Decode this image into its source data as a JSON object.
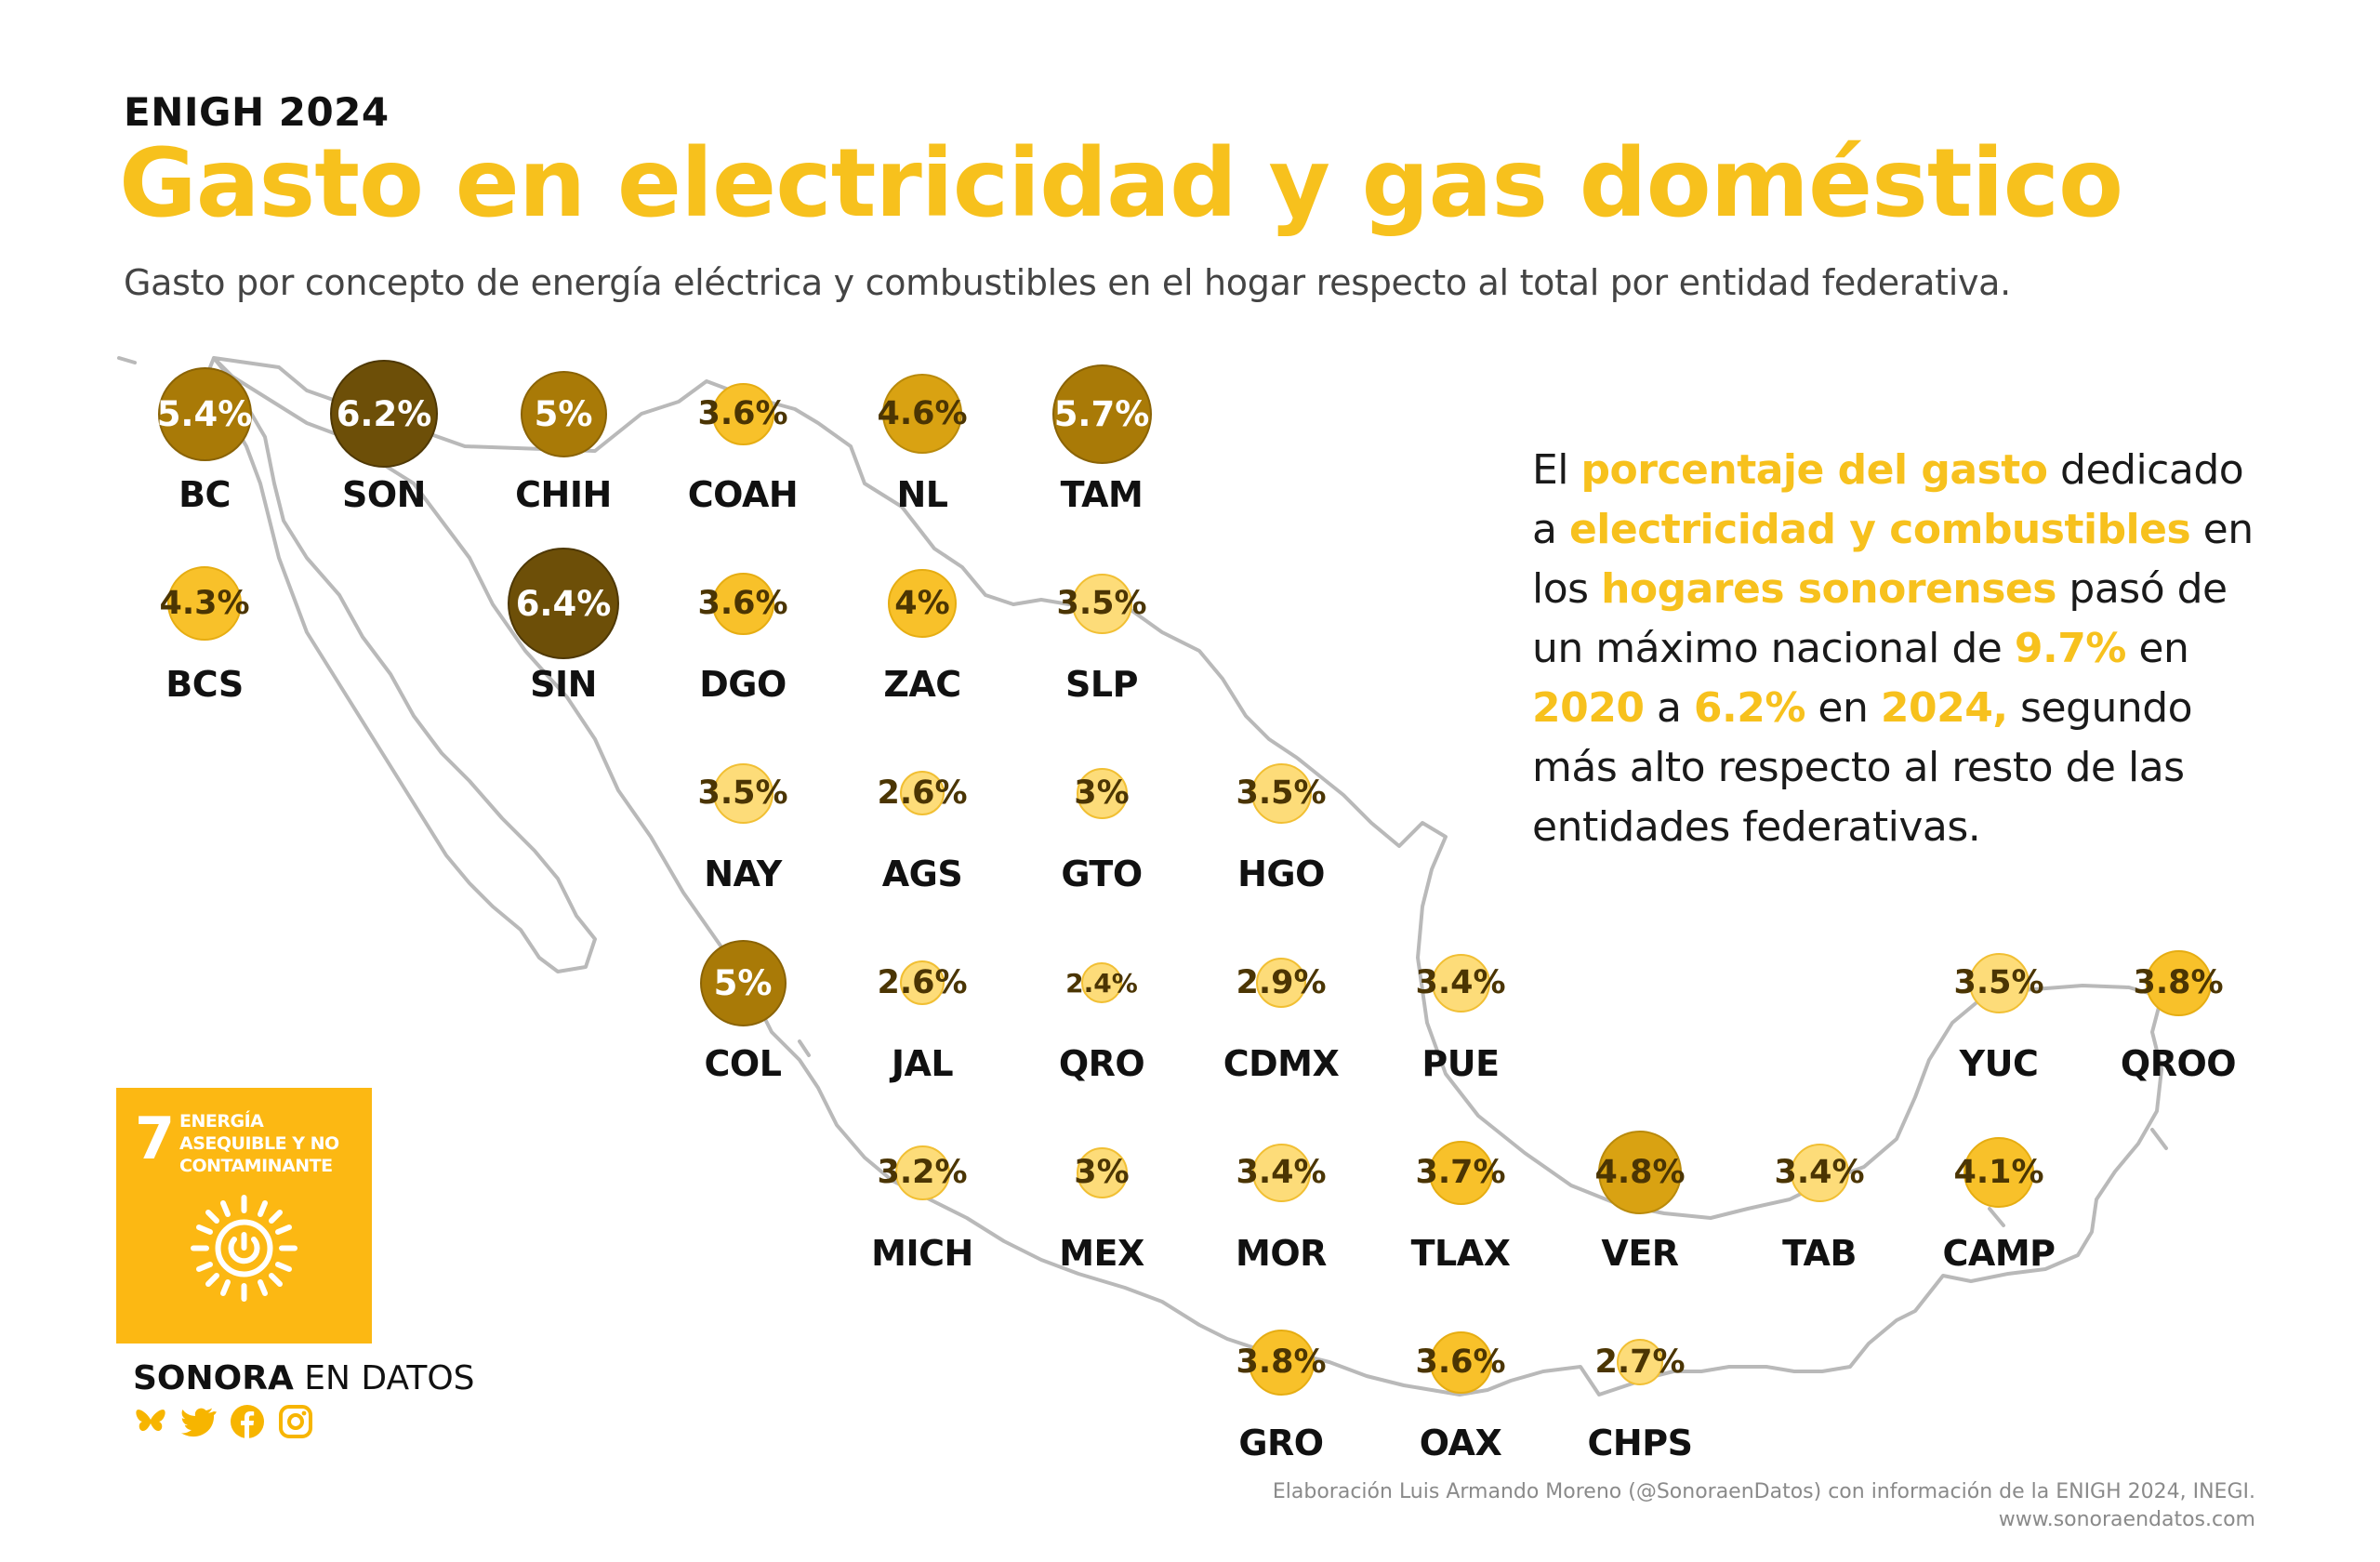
{
  "header": {
    "eyebrow": "ENIGH 2024",
    "title": "Gasto en electricidad y gas doméstico",
    "subtitle": "Gasto por concepto de energía eléctrica y combustibles en el hogar respecto al total por entidad federativa."
  },
  "chart_data": {
    "type": "tile-map bubble",
    "unit": "%",
    "colors": {
      "low": "#fddc79",
      "mid": "#f8c12a",
      "high": "#d9a212",
      "higher": "#a97a07",
      "highest": "#6d4f08",
      "map_outline": "#b5b5b5"
    },
    "states": [
      {
        "code": "BC",
        "label": "5.4%",
        "value": 5.4,
        "row": 0,
        "col": 0
      },
      {
        "code": "SON",
        "label": "6.2%",
        "value": 6.2,
        "row": 0,
        "col": 1
      },
      {
        "code": "CHIH",
        "label": "5%",
        "value": 5.0,
        "row": 0,
        "col": 2
      },
      {
        "code": "COAH",
        "label": "3.6%",
        "value": 3.6,
        "row": 0,
        "col": 3
      },
      {
        "code": "NL",
        "label": "4.6%",
        "value": 4.6,
        "row": 0,
        "col": 4
      },
      {
        "code": "TAM",
        "label": "5.7%",
        "value": 5.7,
        "row": 0,
        "col": 5
      },
      {
        "code": "BCS",
        "label": "4.3%",
        "value": 4.3,
        "row": 1,
        "col": 0
      },
      {
        "code": "SIN",
        "label": "6.4%",
        "value": 6.4,
        "row": 1,
        "col": 2
      },
      {
        "code": "DGO",
        "label": "3.6%",
        "value": 3.6,
        "row": 1,
        "col": 3
      },
      {
        "code": "ZAC",
        "label": "4%",
        "value": 4.0,
        "row": 1,
        "col": 4
      },
      {
        "code": "SLP",
        "label": "3.5%",
        "value": 3.5,
        "row": 1,
        "col": 5
      },
      {
        "code": "NAY",
        "label": "3.5%",
        "value": 3.5,
        "row": 2,
        "col": 3
      },
      {
        "code": "AGS",
        "label": "2.6%",
        "value": 2.6,
        "row": 2,
        "col": 4
      },
      {
        "code": "GTO",
        "label": "3%",
        "value": 3.0,
        "row": 2,
        "col": 5
      },
      {
        "code": "HGO",
        "label": "3.5%",
        "value": 3.5,
        "row": 2,
        "col": 6
      },
      {
        "code": "COL",
        "label": "5%",
        "value": 5.0,
        "row": 3,
        "col": 3
      },
      {
        "code": "JAL",
        "label": "2.6%",
        "value": 2.6,
        "row": 3,
        "col": 4
      },
      {
        "code": "QRO",
        "label": "2.4%",
        "value": 2.4,
        "row": 3,
        "col": 5
      },
      {
        "code": "CDMX",
        "label": "2.9%",
        "value": 2.9,
        "row": 3,
        "col": 6
      },
      {
        "code": "PUE",
        "label": "3.4%",
        "value": 3.4,
        "row": 3,
        "col": 7
      },
      {
        "code": "YUC",
        "label": "3.5%",
        "value": 3.5,
        "row": 3,
        "col": 10
      },
      {
        "code": "QROO",
        "label": "3.8%",
        "value": 3.8,
        "row": 3,
        "col": 11
      },
      {
        "code": "MICH",
        "label": "3.2%",
        "value": 3.2,
        "row": 4,
        "col": 4
      },
      {
        "code": "MEX",
        "label": "3%",
        "value": 3.0,
        "row": 4,
        "col": 5
      },
      {
        "code": "MOR",
        "label": "3.4%",
        "value": 3.4,
        "row": 4,
        "col": 6
      },
      {
        "code": "TLAX",
        "label": "3.7%",
        "value": 3.7,
        "row": 4,
        "col": 7
      },
      {
        "code": "VER",
        "label": "4.8%",
        "value": 4.8,
        "row": 4,
        "col": 8
      },
      {
        "code": "TAB",
        "label": "3.4%",
        "value": 3.4,
        "row": 4,
        "col": 9
      },
      {
        "code": "CAMP",
        "label": "4.1%",
        "value": 4.1,
        "row": 4,
        "col": 10
      },
      {
        "code": "GRO",
        "label": "3.8%",
        "value": 3.8,
        "row": 5,
        "col": 6
      },
      {
        "code": "OAX",
        "label": "3.6%",
        "value": 3.6,
        "row": 5,
        "col": 7
      },
      {
        "code": "CHPS",
        "label": "2.7%",
        "value": 2.7,
        "row": 5,
        "col": 8
      }
    ]
  },
  "callout": {
    "parts": [
      {
        "text": "El ",
        "hl": false
      },
      {
        "text": "porcentaje del gasto",
        "hl": true
      },
      {
        "text": " dedicado a ",
        "hl": false
      },
      {
        "text": "electricidad y combustibles",
        "hl": true
      },
      {
        "text": " en los ",
        "hl": false
      },
      {
        "text": "hogares sonorenses",
        "hl": true
      },
      {
        "text": " pasó de un máximo nacional de ",
        "hl": false
      },
      {
        "text": "9.7%",
        "hl": true
      },
      {
        "text": " en ",
        "hl": false
      },
      {
        "text": "2020",
        "hl": true
      },
      {
        "text": " a ",
        "hl": false
      },
      {
        "text": "6.2%",
        "hl": true
      },
      {
        "text": " en ",
        "hl": false
      },
      {
        "text": "2024,",
        "hl": true
      },
      {
        "text": " segundo más alto respecto al resto de las entidades federativas.",
        "hl": false
      }
    ]
  },
  "sdg_badge": {
    "number": "7",
    "text": "ENERGÍA ASEQUIBLE Y NO CONTAMINANTE",
    "icon": "sun-power-icon",
    "color": "#fcb813"
  },
  "brand": {
    "bold": "SONORA",
    "regular": " EN DATOS"
  },
  "social_icons": [
    "butterfly-icon",
    "twitter-bird-icon",
    "facebook-icon",
    "instagram-icon"
  ],
  "credit": {
    "line1": "Elaboración Luis Armando Moreno (@SonoraenDatos) con información de la ENIGH 2024, INEGI.",
    "line2": "www.sonoraendatos.com"
  }
}
